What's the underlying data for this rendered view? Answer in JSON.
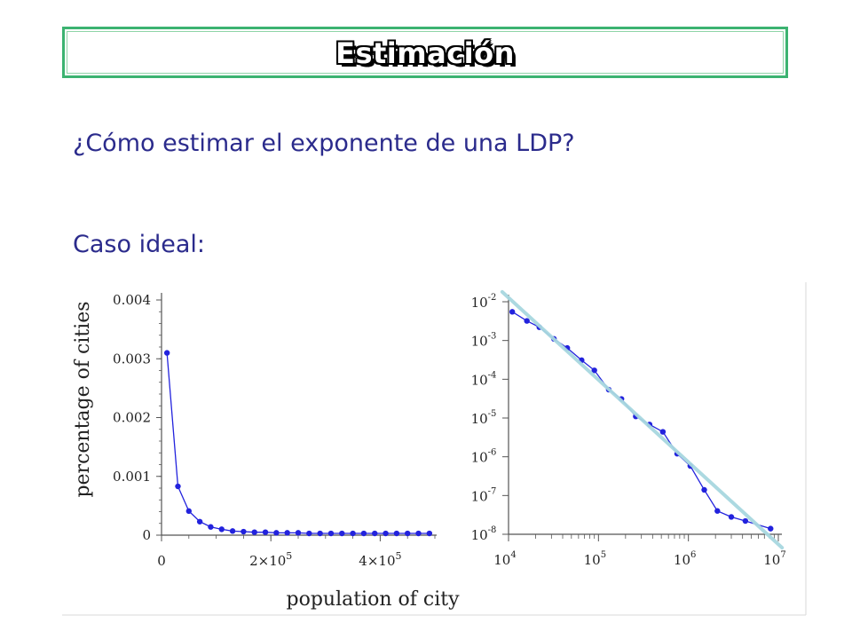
{
  "header": {
    "title": "Estimación"
  },
  "content": {
    "question": "¿Cómo estimar el exponente de una LDP?",
    "case": "Caso ideal:"
  },
  "colors": {
    "title_border": "#3cb371",
    "text": "#2b2b8c",
    "series": "#2222dd",
    "fit_line": "#a8d8e0"
  },
  "chart_data": [
    {
      "type": "line",
      "xlabel": "population of city",
      "ylabel": "percentage of cities",
      "xlim": [
        0,
        500000
      ],
      "ylim": [
        0,
        0.004
      ],
      "x_ticks": [
        0,
        200000,
        400000
      ],
      "x_tick_labels": [
        "0",
        "2×10",
        "4×10"
      ],
      "x_tick_exponent": "5",
      "y_ticks": [
        0,
        0.001,
        0.002,
        0.003,
        0.004
      ],
      "y_tick_labels": [
        "0",
        "0.001",
        "0.002",
        "0.003",
        "0.004"
      ],
      "series": [
        {
          "x": [
            10000,
            30000,
            50000,
            70000,
            90000,
            110000,
            130000,
            150000,
            170000,
            190000,
            210000,
            230000,
            250000,
            270000,
            290000,
            310000,
            330000,
            350000,
            370000,
            390000,
            410000,
            430000,
            450000,
            470000,
            490000
          ],
          "y": [
            0.0031,
            0.00083,
            0.00041,
            0.00023,
            0.00014,
            0.0001,
            7e-05,
            6e-05,
            5e-05,
            5e-05,
            4e-05,
            4e-05,
            4e-05,
            3e-05,
            3e-05,
            3e-05,
            3e-05,
            3e-05,
            3e-05,
            3e-05,
            3e-05,
            3e-05,
            3e-05,
            3e-05,
            3e-05
          ]
        }
      ]
    },
    {
      "type": "line",
      "xscale": "log",
      "yscale": "log",
      "xlim": [
        10000,
        10000000
      ],
      "ylim": [
        1e-08,
        0.01
      ],
      "x_tick_exponents": [
        "4",
        "5",
        "6",
        "7"
      ],
      "y_tick_exponents": [
        "-2",
        "-3",
        "-4",
        "-5",
        "-6",
        "-7",
        "-8"
      ],
      "series": [
        {
          "x": [
            11000,
            16000,
            22000,
            32000,
            45000,
            65000,
            90000,
            130000,
            180000,
            260000,
            370000,
            520000,
            750000,
            1050000,
            1500000,
            2100000,
            3000000,
            4300000,
            8200000
          ],
          "y": [
            0.0055,
            0.0032,
            0.0022,
            0.0011,
            0.00064,
            0.00031,
            0.00017,
            5.4e-05,
            3.1e-05,
            1.1e-05,
            6.8e-06,
            4.4e-06,
            1.2e-06,
            5.8e-07,
            1.4e-07,
            4e-08,
            2.8e-08,
            2.2e-08,
            1.4e-08
          ]
        },
        {
          "name": "fit",
          "x": [
            8500,
            11000000
          ],
          "y": [
            0.018,
            4.5e-09
          ]
        }
      ]
    }
  ]
}
